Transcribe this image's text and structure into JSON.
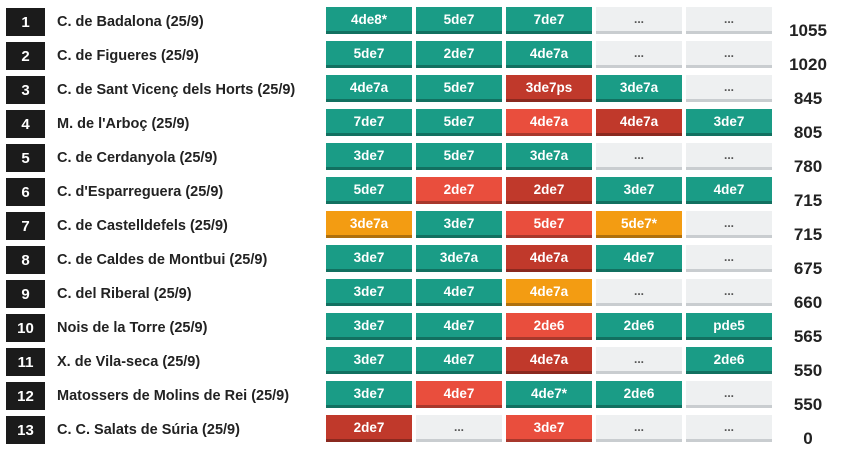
{
  "colors": {
    "green": "#1a9c86",
    "red": "#e94e3d",
    "darkred": "#c0392b",
    "orange": "#f39c12",
    "empty": "#eef0f1",
    "rank_bg": "#1b1b1b"
  },
  "rows": [
    {
      "rank": "1",
      "name": "C. de Badalona (25/9)",
      "points": "1055",
      "castells": [
        {
          "label": "4de8*",
          "status": "green"
        },
        {
          "label": "5de7",
          "status": "green"
        },
        {
          "label": "7de7",
          "status": "green"
        },
        {
          "label": "...",
          "status": "empty"
        },
        {
          "label": "...",
          "status": "empty"
        }
      ]
    },
    {
      "rank": "2",
      "name": "C. de Figueres (25/9)",
      "points": "1020",
      "castells": [
        {
          "label": "5de7",
          "status": "green"
        },
        {
          "label": "2de7",
          "status": "green"
        },
        {
          "label": "4de7a",
          "status": "green"
        },
        {
          "label": "...",
          "status": "empty"
        },
        {
          "label": "...",
          "status": "empty"
        }
      ]
    },
    {
      "rank": "3",
      "name": "C. de Sant Vicenç dels Horts (25/9)",
      "points": "845",
      "castells": [
        {
          "label": "4de7a",
          "status": "green"
        },
        {
          "label": "5de7",
          "status": "green"
        },
        {
          "label": "3de7ps",
          "status": "darkred"
        },
        {
          "label": "3de7a",
          "status": "green"
        },
        {
          "label": "...",
          "status": "empty"
        }
      ]
    },
    {
      "rank": "4",
      "name": "M. de l'Arboç (25/9)",
      "points": "805",
      "castells": [
        {
          "label": "7de7",
          "status": "green"
        },
        {
          "label": "5de7",
          "status": "green"
        },
        {
          "label": "4de7a",
          "status": "red"
        },
        {
          "label": "4de7a",
          "status": "darkred"
        },
        {
          "label": "3de7",
          "status": "green"
        }
      ]
    },
    {
      "rank": "5",
      "name": "C. de Cerdanyola (25/9)",
      "points": "780",
      "castells": [
        {
          "label": "3de7",
          "status": "green"
        },
        {
          "label": "5de7",
          "status": "green"
        },
        {
          "label": "3de7a",
          "status": "green"
        },
        {
          "label": "...",
          "status": "empty"
        },
        {
          "label": "...",
          "status": "empty"
        }
      ]
    },
    {
      "rank": "6",
      "name": "C. d'Esparreguera (25/9)",
      "points": "715",
      "castells": [
        {
          "label": "5de7",
          "status": "green"
        },
        {
          "label": "2de7",
          "status": "red"
        },
        {
          "label": "2de7",
          "status": "darkred"
        },
        {
          "label": "3de7",
          "status": "green"
        },
        {
          "label": "4de7",
          "status": "green"
        }
      ]
    },
    {
      "rank": "7",
      "name": "C. de Castelldefels (25/9)",
      "points": "715",
      "castells": [
        {
          "label": "3de7a",
          "status": "orange"
        },
        {
          "label": "3de7",
          "status": "green"
        },
        {
          "label": "5de7",
          "status": "red"
        },
        {
          "label": "5de7*",
          "status": "orange"
        },
        {
          "label": "...",
          "status": "empty"
        }
      ]
    },
    {
      "rank": "8",
      "name": "C. de Caldes de Montbui (25/9)",
      "points": "675",
      "castells": [
        {
          "label": "3de7",
          "status": "green"
        },
        {
          "label": "3de7a",
          "status": "green"
        },
        {
          "label": "4de7a",
          "status": "darkred"
        },
        {
          "label": "4de7",
          "status": "green"
        },
        {
          "label": "...",
          "status": "empty"
        }
      ]
    },
    {
      "rank": "9",
      "name": "C. del Riberal (25/9)",
      "points": "660",
      "castells": [
        {
          "label": "3de7",
          "status": "green"
        },
        {
          "label": "4de7",
          "status": "green"
        },
        {
          "label": "4de7a",
          "status": "orange"
        },
        {
          "label": "...",
          "status": "empty"
        },
        {
          "label": "...",
          "status": "empty"
        }
      ]
    },
    {
      "rank": "10",
      "name": "Nois de la Torre (25/9)",
      "points": "565",
      "castells": [
        {
          "label": "3de7",
          "status": "green"
        },
        {
          "label": "4de7",
          "status": "green"
        },
        {
          "label": "2de6",
          "status": "red"
        },
        {
          "label": "2de6",
          "status": "green"
        },
        {
          "label": "pde5",
          "status": "green"
        }
      ]
    },
    {
      "rank": "11",
      "name": "X. de Vila-seca (25/9)",
      "points": "550",
      "castells": [
        {
          "label": "3de7",
          "status": "green"
        },
        {
          "label": "4de7",
          "status": "green"
        },
        {
          "label": "4de7a",
          "status": "darkred"
        },
        {
          "label": "...",
          "status": "empty"
        },
        {
          "label": "2de6",
          "status": "green"
        }
      ]
    },
    {
      "rank": "12",
      "name": "Matossers de Molins de Rei (25/9)",
      "points": "550",
      "castells": [
        {
          "label": "3de7",
          "status": "green"
        },
        {
          "label": "4de7",
          "status": "red"
        },
        {
          "label": "4de7*",
          "status": "green"
        },
        {
          "label": "2de6",
          "status": "green"
        },
        {
          "label": "...",
          "status": "empty"
        }
      ]
    },
    {
      "rank": "13",
      "name": "C. C. Salats de Súria (25/9)",
      "points": "0",
      "castells": [
        {
          "label": "2de7",
          "status": "darkred"
        },
        {
          "label": "...",
          "status": "empty"
        },
        {
          "label": "3de7",
          "status": "red"
        },
        {
          "label": "...",
          "status": "empty"
        },
        {
          "label": "...",
          "status": "empty"
        }
      ]
    }
  ]
}
